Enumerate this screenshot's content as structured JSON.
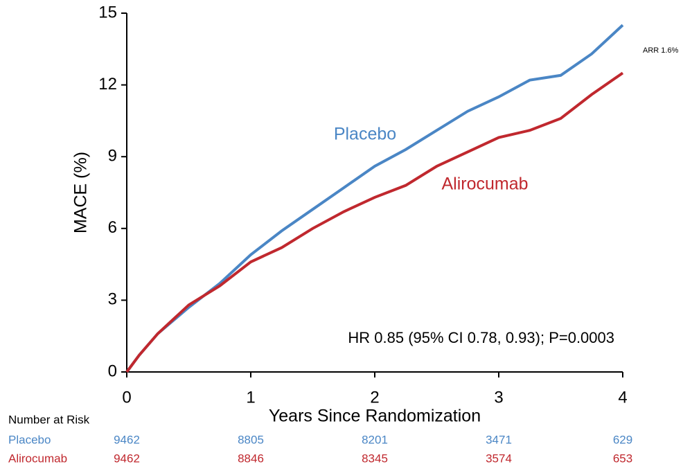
{
  "chart_data": {
    "type": "line",
    "ylabel": "MACE (%)",
    "xlabel": "Years Since Randomization",
    "xlim": [
      0,
      4
    ],
    "xticks": [
      0,
      1,
      2,
      3,
      4
    ],
    "ylim": [
      0,
      15
    ],
    "yticks": [
      0,
      3,
      6,
      9,
      12,
      15
    ],
    "grid": false,
    "series": [
      {
        "name": "Placebo",
        "color": "#4a86c5",
        "x": [
          0,
          0.1,
          0.25,
          0.5,
          0.75,
          1,
          1.25,
          1.5,
          1.75,
          2,
          2.25,
          2.5,
          2.75,
          3,
          3.25,
          3.5,
          3.75,
          4
        ],
        "values": [
          0,
          0.7,
          1.6,
          2.7,
          3.7,
          4.9,
          5.9,
          6.8,
          7.7,
          8.6,
          9.3,
          10.1,
          10.9,
          11.5,
          12.2,
          12.4,
          13.3,
          14.5
        ]
      },
      {
        "name": "Alirocumab",
        "color": "#c0282e",
        "x": [
          0,
          0.1,
          0.25,
          0.5,
          0.75,
          1,
          1.25,
          1.5,
          1.75,
          2,
          2.25,
          2.5,
          2.75,
          3,
          3.25,
          3.5,
          3.75,
          4
        ],
        "values": [
          0,
          0.7,
          1.6,
          2.8,
          3.6,
          4.6,
          5.2,
          6.0,
          6.7,
          7.3,
          7.8,
          8.6,
          9.2,
          9.8,
          10.1,
          10.6,
          11.6,
          12.5
        ]
      }
    ],
    "annotations": [
      "HR 0.85 (95% CI 0.78, 0.93); P=0.0003",
      "ARR 1.6%"
    ],
    "risk_table": {
      "title": "Number at Risk",
      "rows": [
        {
          "label": "Placebo",
          "values": [
            9462,
            8805,
            8201,
            3471,
            629
          ]
        },
        {
          "label": "Alirocumab",
          "values": [
            9462,
            8846,
            8345,
            3574,
            653
          ]
        }
      ]
    }
  }
}
